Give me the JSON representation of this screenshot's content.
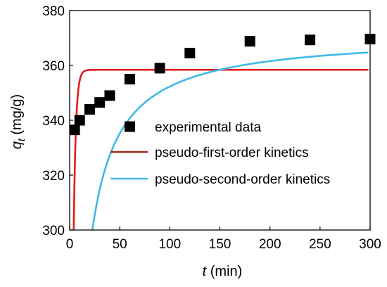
{
  "chart_data": {
    "type": "scatter",
    "title": "",
    "xlabel": {
      "symbol": "t",
      "unit": " (min)"
    },
    "ylabel": {
      "symbol": "q",
      "subscript": "t",
      "unit": " (mg/g)"
    },
    "xlim": [
      0,
      300
    ],
    "ylim": [
      300,
      380
    ],
    "xticks": [
      0,
      50,
      100,
      150,
      200,
      250,
      300
    ],
    "yticks": [
      300,
      320,
      340,
      360,
      380
    ],
    "grid": false,
    "legend_position": "center-right",
    "series": [
      {
        "name": "experimental data",
        "kind": "markers",
        "color": "#000000",
        "x": [
          5,
          10,
          20,
          30,
          40,
          60,
          90,
          120,
          180,
          240,
          300
        ],
        "y": [
          336.5,
          340,
          344,
          346.5,
          349,
          355,
          359,
          364.5,
          368.8,
          369.3,
          369.6
        ]
      },
      {
        "name": "pseudo-first-order kinetics",
        "kind": "line",
        "color": "#e41a1c",
        "model": {
          "qe": 358.4,
          "k1": 0.45
        }
      },
      {
        "name": "pseudo-second-order kinetics",
        "kind": "line",
        "color": "#3fb9e8",
        "model": {
          "qe": 371.3,
          "k2": 0.0005
        }
      }
    ]
  }
}
